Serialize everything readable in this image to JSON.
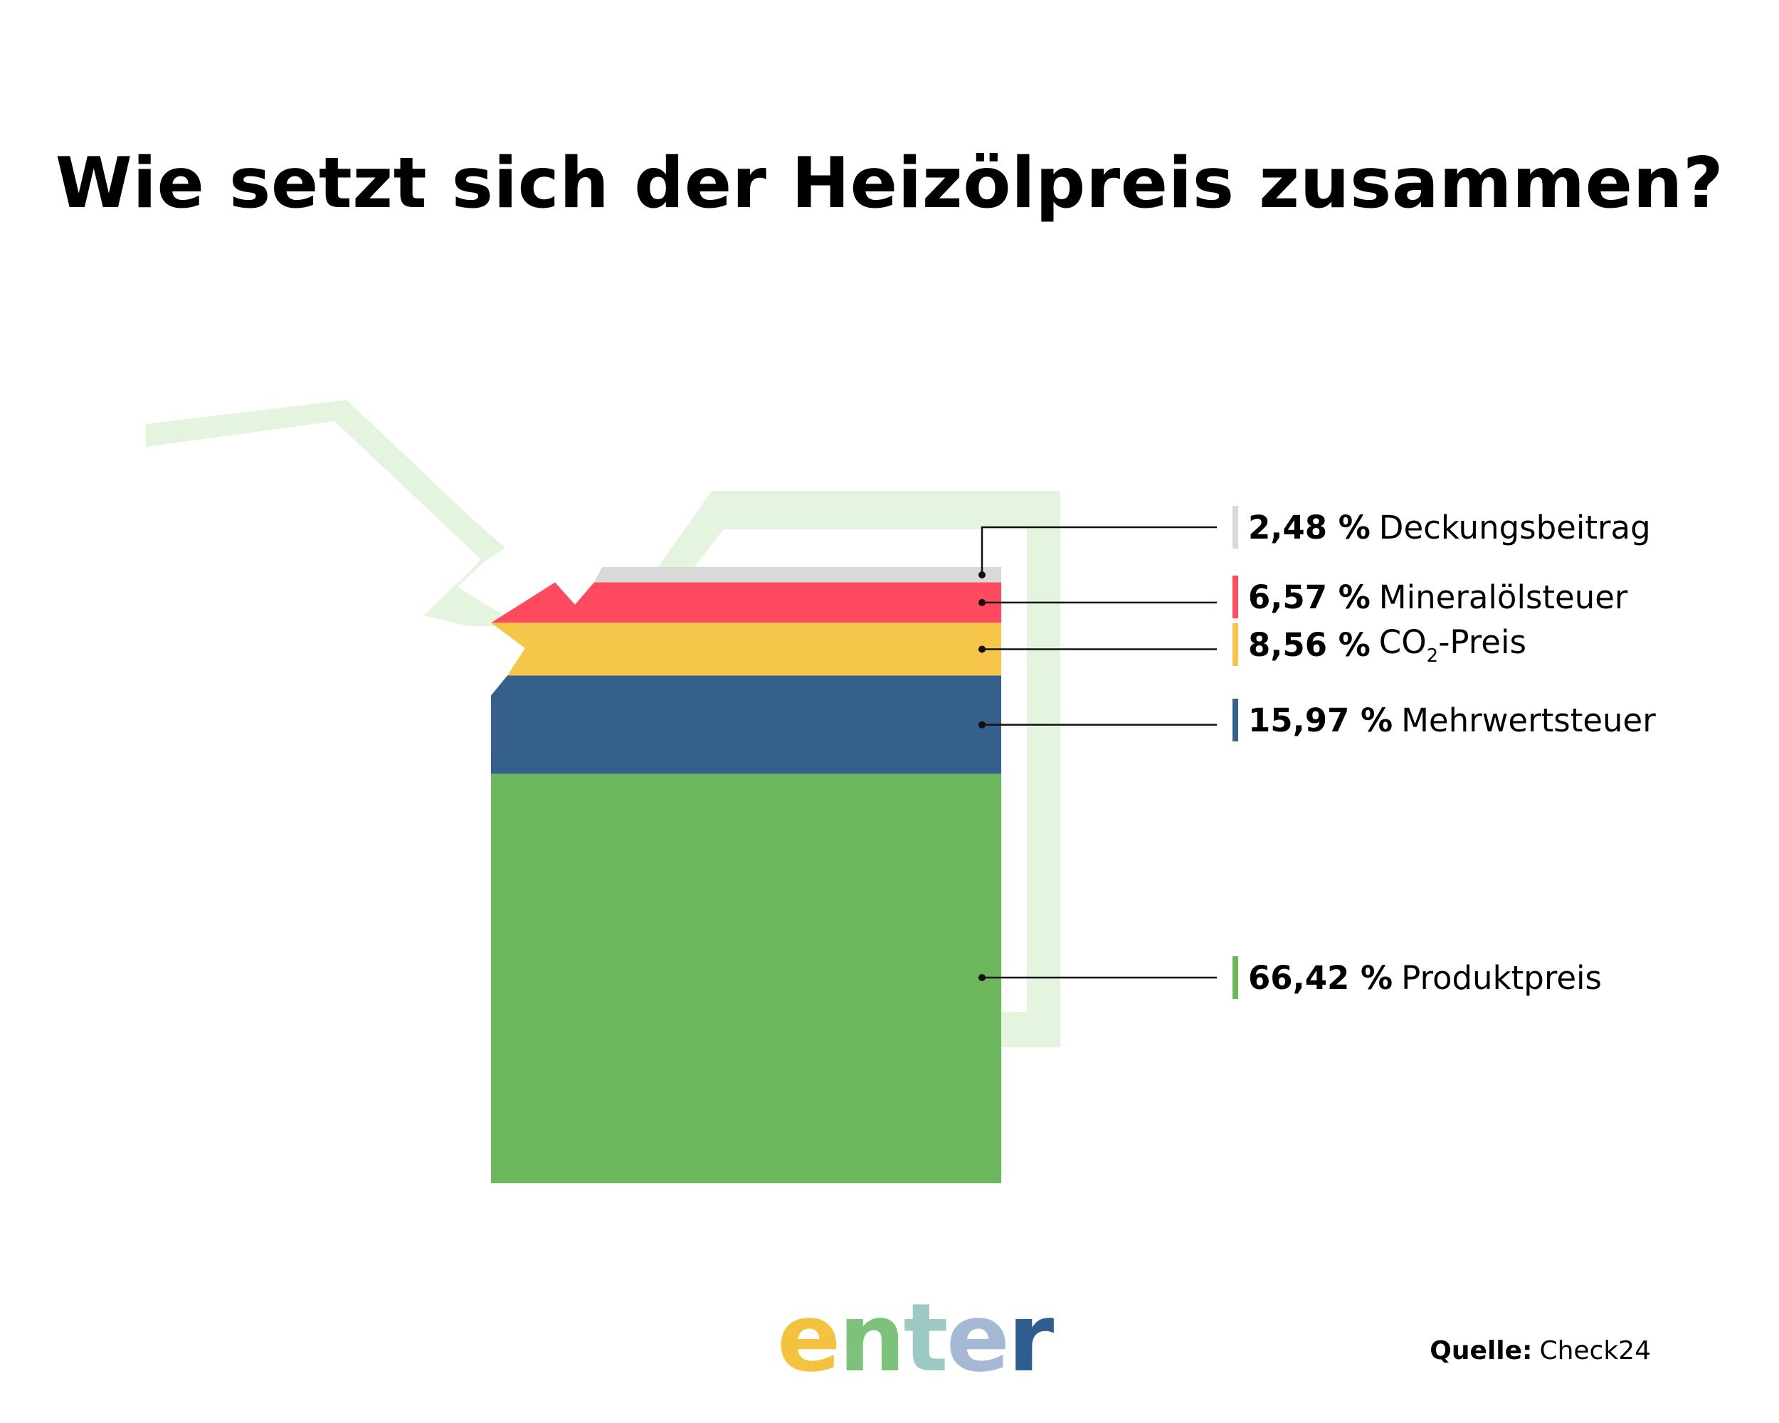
{
  "title": "Wie setzt sich der Heizölpreis zusammen?",
  "chart_data": {
    "type": "stacked-bar",
    "title": "Wie setzt sich der Heizölpreis zusammen?",
    "unit": "%",
    "segments": [
      {
        "name": "Deckungsbeitrag",
        "value": 2.48,
        "label": "2,48 %",
        "color": "#d9d9d9"
      },
      {
        "name": "Mineralölsteuer",
        "value": 6.57,
        "label": "6,57 %",
        "color": "#ff4a5f"
      },
      {
        "name": "CO2-Preis",
        "name_base": "CO",
        "name_sub": "2",
        "name_rest": "-Preis",
        "value": 8.56,
        "label": "8,56 %",
        "color": "#f5c64a"
      },
      {
        "name": "Mehrwertsteuer",
        "value": 15.97,
        "label": "15,97 %",
        "color": "#36608c"
      },
      {
        "name": "Produktpreis",
        "value": 66.42,
        "label": "66,42 %",
        "color": "#6cb75c"
      }
    ],
    "canister_outline_color": "#e4f4de"
  },
  "logo": {
    "text": "enter",
    "colors": [
      "#f3c33f",
      "#7cc27a",
      "#9cc9c1",
      "#a5b9d6",
      "#2f5d8f"
    ]
  },
  "source": {
    "label": "Quelle:",
    "value": "Check24"
  }
}
